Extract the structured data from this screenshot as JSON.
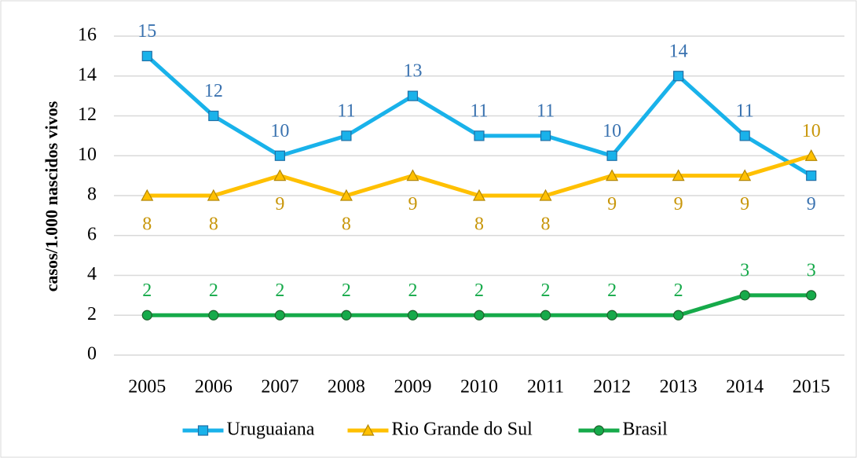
{
  "chart_data": {
    "type": "line",
    "y_label": "casos/1.000 nascidos vivos",
    "categories": [
      "2005",
      "2006",
      "2007",
      "2008",
      "2009",
      "2010",
      "2011",
      "2012",
      "2013",
      "2014",
      "2015"
    ],
    "series": [
      {
        "name": "Uruguaiana",
        "color": "#19b2ea",
        "label_color": "#3b73b0",
        "marker": "square",
        "values": [
          15,
          12,
          10,
          11,
          13,
          11,
          11,
          10,
          14,
          11,
          9
        ]
      },
      {
        "name": "Rio Grande do Sul",
        "color": "#ffc000",
        "label_color": "#c8960a",
        "marker": "triangle",
        "values": [
          8,
          8,
          9,
          8,
          9,
          8,
          8,
          9,
          9,
          9,
          10
        ]
      },
      {
        "name": "Brasil",
        "color": "#16aa4a",
        "label_color": "#16aa4a",
        "marker": "circle",
        "values": [
          2,
          2,
          2,
          2,
          2,
          2,
          2,
          2,
          2,
          3,
          3
        ]
      }
    ],
    "ylim": [
      0,
      16
    ],
    "yticks": [
      0,
      2,
      4,
      6,
      8,
      10,
      12,
      14,
      16
    ],
    "grid": true,
    "legend": "bottom"
  }
}
